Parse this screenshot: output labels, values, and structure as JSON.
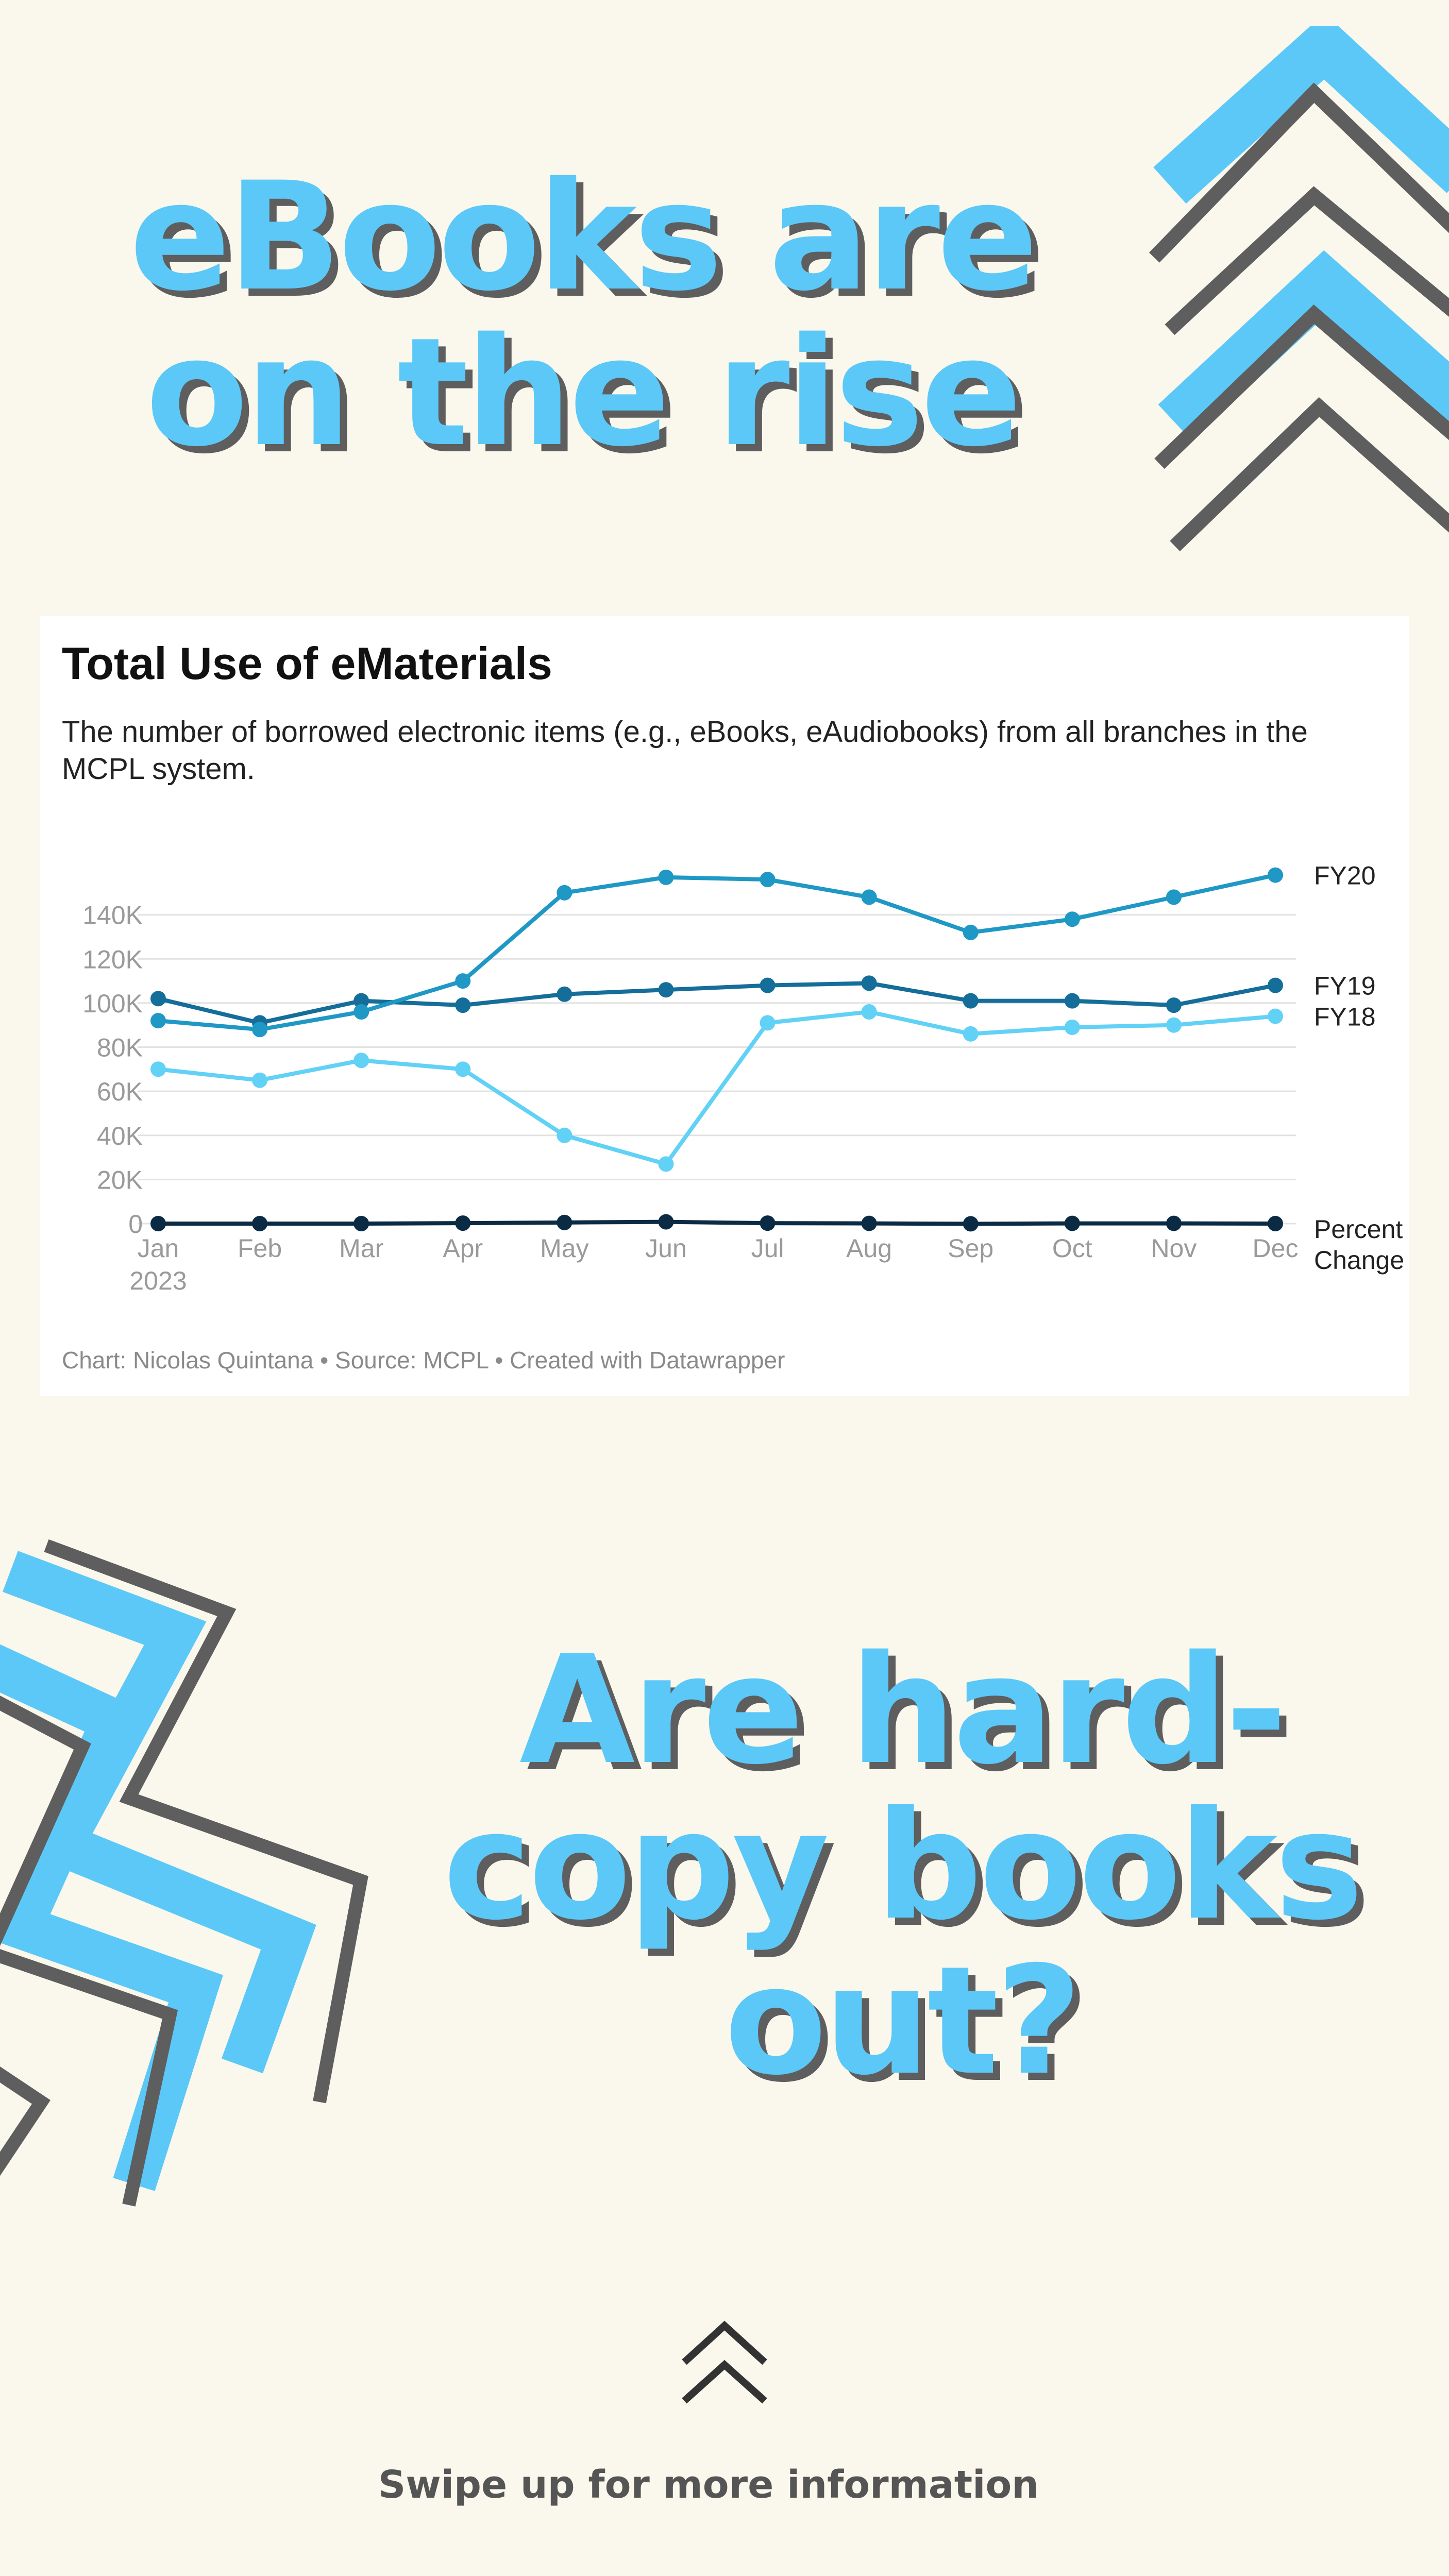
{
  "headline_top": "eBooks are on the rise",
  "headline_bottom": "Are hard-copy books out?",
  "swipe_text": "Swipe up for more information",
  "colors": {
    "background": "#faf8ec",
    "accent_blue": "#5bc8f8",
    "accent_gray": "#5e5e5e",
    "fy20": "#1f98c6",
    "fy19": "#146e99",
    "fy18": "#62d1f6",
    "percent_change": "#0b2b44",
    "gridline": "#e2e2e2",
    "tick_label": "#9a9a9a"
  },
  "icons": [
    "chevron-stack-icon",
    "zigzag-decoration-icon",
    "double-chevron-up-icon"
  ],
  "chart_data": {
    "type": "line",
    "title": "Total Use of eMaterials",
    "subtitle": "The number of borrowed electronic items (e.g., eBooks, eAudiobooks) from all branches in the MCPL system.",
    "footer": "Chart: Nicolas Quintana • Source: MCPL • Created with Datawrapper",
    "categories": [
      "Jan",
      "Feb",
      "Mar",
      "Apr",
      "May",
      "Jun",
      "Jul",
      "Aug",
      "Sep",
      "Oct",
      "Nov",
      "Dec"
    ],
    "x_year_label": "2023",
    "y_ticks": [
      0,
      20000,
      40000,
      60000,
      80000,
      100000,
      120000,
      140000
    ],
    "y_tick_labels": [
      "0",
      "20K",
      "40K",
      "60K",
      "80K",
      "100K",
      "120K",
      "140K"
    ],
    "ylim": [
      0,
      160000
    ],
    "grid": true,
    "legend": "inline labels at right end of each line",
    "series": [
      {
        "name": "FY20",
        "color": "#1f98c6",
        "values": [
          92000,
          88000,
          96000,
          110000,
          150000,
          157000,
          156000,
          148000,
          132000,
          138000,
          148000,
          158000
        ]
      },
      {
        "name": "FY19",
        "color": "#146e99",
        "values": [
          102000,
          91000,
          101000,
          99000,
          104000,
          106000,
          108000,
          109000,
          101000,
          101000,
          99000,
          108000
        ]
      },
      {
        "name": "FY18",
        "color": "#62d1f6",
        "values": [
          70000,
          65000,
          74000,
          70000,
          40000,
          27000,
          91000,
          96000,
          86000,
          89000,
          90000,
          94000
        ]
      },
      {
        "name": "Percent Change",
        "color": "#0b2b44",
        "values": [
          0,
          0,
          0,
          200,
          500,
          800,
          200,
          100,
          -100,
          100,
          100,
          0
        ]
      }
    ]
  }
}
